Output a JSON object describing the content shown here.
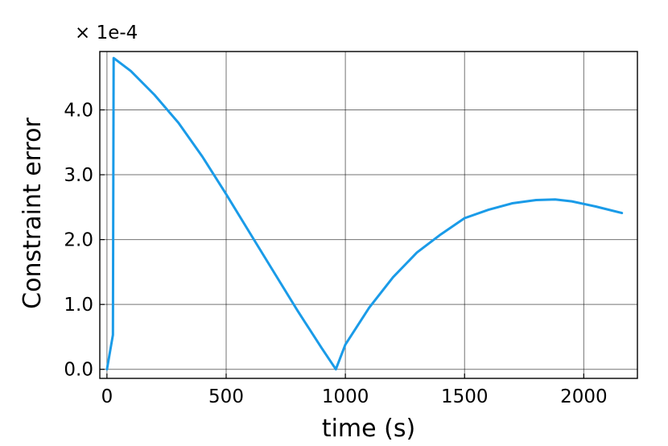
{
  "chart_data": {
    "type": "line",
    "xlabel": "time (s)",
    "ylabel": "Constraint error",
    "multiplier_label": "× 1e-4",
    "xlim": [
      -30,
      2225
    ],
    "ylim": [
      -0.14,
      4.9
    ],
    "xticks": [
      0,
      500,
      1000,
      1500,
      2000
    ],
    "xtick_labels": [
      "0",
      "500",
      "1000",
      "1500",
      "2000"
    ],
    "yticks": [
      0,
      1,
      2,
      3,
      4
    ],
    "ytick_labels": [
      "0.0",
      "1.0",
      "2.0",
      "3.0",
      "4.0"
    ],
    "grid": true,
    "legend": "none",
    "series": [
      {
        "color": "#1a9be8",
        "x": [
          0,
          25,
          28,
          100,
          200,
          300,
          400,
          500,
          600,
          700,
          800,
          900,
          960,
          1000,
          1100,
          1200,
          1300,
          1400,
          1500,
          1600,
          1700,
          1800,
          1880,
          1950,
          2050,
          2160
        ],
        "y": [
          0.0,
          0.53,
          4.8,
          4.6,
          4.23,
          3.8,
          3.28,
          2.7,
          2.1,
          1.5,
          0.9,
          0.33,
          0.0,
          0.38,
          0.95,
          1.42,
          1.8,
          2.08,
          2.33,
          2.46,
          2.56,
          2.61,
          2.62,
          2.59,
          2.51,
          2.41
        ]
      }
    ]
  }
}
